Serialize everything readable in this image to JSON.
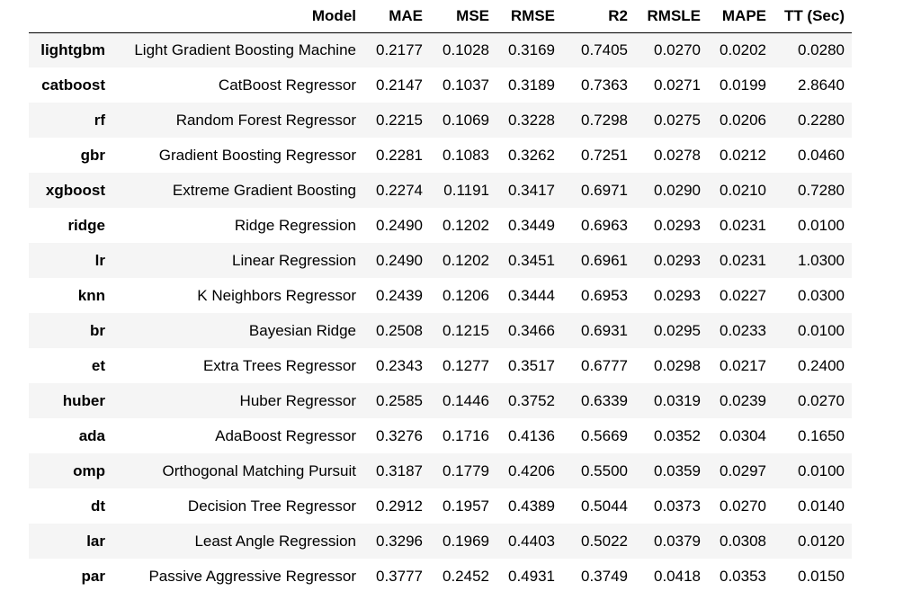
{
  "table": {
    "columns": [
      "",
      "Model",
      "MAE",
      "MSE",
      "RMSE",
      "R2",
      "RMSLE",
      "MAPE",
      "TT (Sec)"
    ],
    "rows": [
      {
        "index": "lightgbm",
        "model": "Light Gradient Boosting Machine",
        "mae": "0.2177",
        "mse": "0.1028",
        "rmse": "0.3169",
        "r2": "0.7405",
        "rmsle": "0.0270",
        "mape": "0.0202",
        "tt": "0.0280"
      },
      {
        "index": "catboost",
        "model": "CatBoost Regressor",
        "mae": "0.2147",
        "mse": "0.1037",
        "rmse": "0.3189",
        "r2": "0.7363",
        "rmsle": "0.0271",
        "mape": "0.0199",
        "tt": "2.8640"
      },
      {
        "index": "rf",
        "model": "Random Forest Regressor",
        "mae": "0.2215",
        "mse": "0.1069",
        "rmse": "0.3228",
        "r2": "0.7298",
        "rmsle": "0.0275",
        "mape": "0.0206",
        "tt": "0.2280"
      },
      {
        "index": "gbr",
        "model": "Gradient Boosting Regressor",
        "mae": "0.2281",
        "mse": "0.1083",
        "rmse": "0.3262",
        "r2": "0.7251",
        "rmsle": "0.0278",
        "mape": "0.0212",
        "tt": "0.0460"
      },
      {
        "index": "xgboost",
        "model": "Extreme Gradient Boosting",
        "mae": "0.2274",
        "mse": "0.1191",
        "rmse": "0.3417",
        "r2": "0.6971",
        "rmsle": "0.0290",
        "mape": "0.0210",
        "tt": "0.7280"
      },
      {
        "index": "ridge",
        "model": "Ridge Regression",
        "mae": "0.2490",
        "mse": "0.1202",
        "rmse": "0.3449",
        "r2": "0.6963",
        "rmsle": "0.0293",
        "mape": "0.0231",
        "tt": "0.0100"
      },
      {
        "index": "lr",
        "model": "Linear Regression",
        "mae": "0.2490",
        "mse": "0.1202",
        "rmse": "0.3451",
        "r2": "0.6961",
        "rmsle": "0.0293",
        "mape": "0.0231",
        "tt": "1.0300"
      },
      {
        "index": "knn",
        "model": "K Neighbors Regressor",
        "mae": "0.2439",
        "mse": "0.1206",
        "rmse": "0.3444",
        "r2": "0.6953",
        "rmsle": "0.0293",
        "mape": "0.0227",
        "tt": "0.0300"
      },
      {
        "index": "br",
        "model": "Bayesian Ridge",
        "mae": "0.2508",
        "mse": "0.1215",
        "rmse": "0.3466",
        "r2": "0.6931",
        "rmsle": "0.0295",
        "mape": "0.0233",
        "tt": "0.0100"
      },
      {
        "index": "et",
        "model": "Extra Trees Regressor",
        "mae": "0.2343",
        "mse": "0.1277",
        "rmse": "0.3517",
        "r2": "0.6777",
        "rmsle": "0.0298",
        "mape": "0.0217",
        "tt": "0.2400"
      },
      {
        "index": "huber",
        "model": "Huber Regressor",
        "mae": "0.2585",
        "mse": "0.1446",
        "rmse": "0.3752",
        "r2": "0.6339",
        "rmsle": "0.0319",
        "mape": "0.0239",
        "tt": "0.0270"
      },
      {
        "index": "ada",
        "model": "AdaBoost Regressor",
        "mae": "0.3276",
        "mse": "0.1716",
        "rmse": "0.4136",
        "r2": "0.5669",
        "rmsle": "0.0352",
        "mape": "0.0304",
        "tt": "0.1650"
      },
      {
        "index": "omp",
        "model": "Orthogonal Matching Pursuit",
        "mae": "0.3187",
        "mse": "0.1779",
        "rmse": "0.4206",
        "r2": "0.5500",
        "rmsle": "0.0359",
        "mape": "0.0297",
        "tt": "0.0100"
      },
      {
        "index": "dt",
        "model": "Decision Tree Regressor",
        "mae": "0.2912",
        "mse": "0.1957",
        "rmse": "0.4389",
        "r2": "0.5044",
        "rmsle": "0.0373",
        "mape": "0.0270",
        "tt": "0.0140"
      },
      {
        "index": "lar",
        "model": "Least Angle Regression",
        "mae": "0.3296",
        "mse": "0.1969",
        "rmse": "0.4403",
        "r2": "0.5022",
        "rmsle": "0.0379",
        "mape": "0.0308",
        "tt": "0.0120"
      },
      {
        "index": "par",
        "model": "Passive Aggressive Regressor",
        "mae": "0.3777",
        "mse": "0.2452",
        "rmse": "0.4931",
        "r2": "0.3749",
        "rmsle": "0.0418",
        "mape": "0.0353",
        "tt": "0.0150"
      }
    ]
  },
  "colors": {
    "stripe": "#f5f5f5",
    "background": "#ffffff",
    "text": "#000000"
  }
}
